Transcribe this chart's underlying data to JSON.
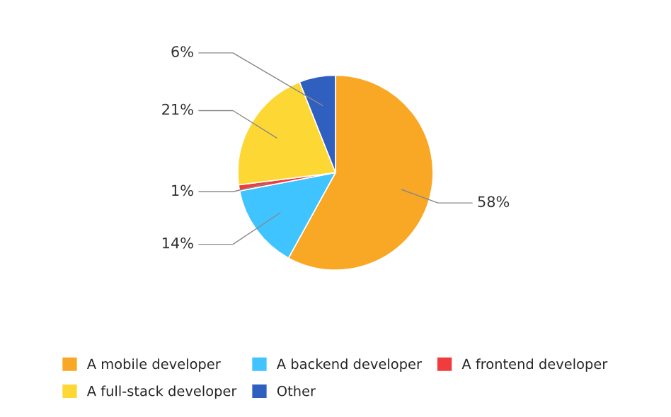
{
  "chart_data": {
    "type": "pie",
    "categories": [
      "A mobile developer",
      "A backend developer",
      "A frontend developer",
      "A full-stack developer",
      "Other"
    ],
    "values": [
      58,
      14,
      1,
      21,
      6
    ],
    "colors": [
      "#f9a825",
      "#40c4ff",
      "#f03c3c",
      "#fdd835",
      "#2f5fbf"
    ],
    "value_labels": [
      "58%",
      "14%",
      "1%",
      "21%",
      "6%"
    ],
    "legend": "bottom"
  }
}
